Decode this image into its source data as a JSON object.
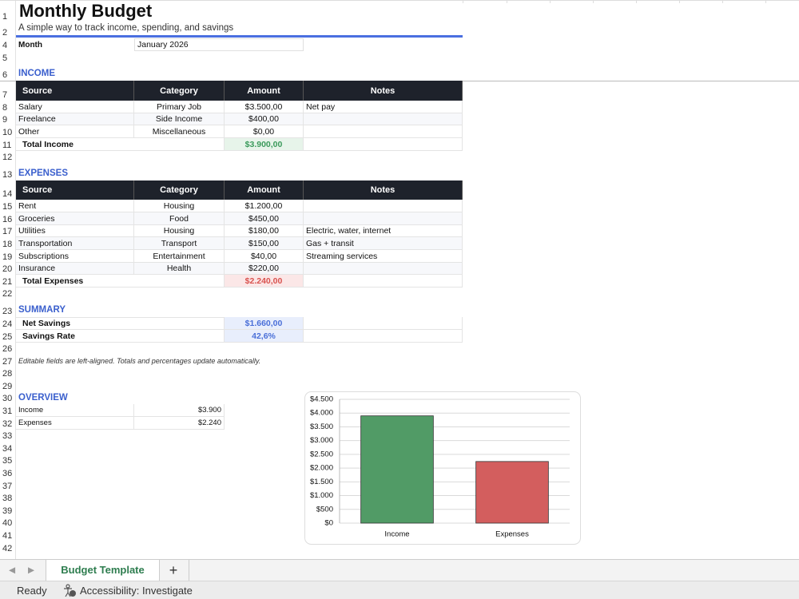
{
  "sheet": {
    "title": "Monthly Budget",
    "subtitle": "A simple way to track income, spending, and savings",
    "month_label": "Month",
    "month_value": "January 2026",
    "income": {
      "heading": "INCOME",
      "columns": [
        "Source",
        "Category",
        "Amount",
        "Notes"
      ],
      "rows": [
        [
          "Salary",
          "Primary Job",
          "$3.500,00",
          "Net pay"
        ],
        [
          "Freelance",
          "Side Income",
          "$400,00"
        ],
        [
          "Other",
          "Miscellaneous",
          "$0,00"
        ]
      ],
      "total": [
        "Total Income",
        "$3.900,00"
      ]
    },
    "expenses": {
      "heading": "EXPENSES",
      "columns": [
        "Source",
        "Category",
        "Amount",
        "Notes"
      ],
      "rows": [
        [
          "Rent",
          "Housing",
          "$1.200,00"
        ],
        [
          "Groceries",
          "Food",
          "$450,00"
        ],
        [
          "Utilities",
          "Housing",
          "$180,00",
          "Electric, water, internet"
        ],
        [
          "Transportation",
          "Transport",
          "$150,00",
          "Gas + transit"
        ],
        [
          "Subscriptions",
          "Entertainment",
          "$40,00",
          "Streaming services"
        ],
        [
          "Insurance",
          "Health",
          "$220,00"
        ]
      ],
      "total": [
        "Total Expenses",
        "$2.240,00"
      ]
    },
    "summary": {
      "heading": "SUMMARY",
      "rows": [
        [
          "Net Savings",
          "$1.660,00"
        ],
        [
          "Savings Rate",
          "42,6%"
        ]
      ]
    },
    "note": "Editable fields are left-aligned. Totals and percentages update automatically.",
    "overview": {
      "heading": "OVERVIEW",
      "rows": [
        [
          "Income",
          "$3.900"
        ],
        [
          "Expenses",
          "$2.240"
        ]
      ]
    }
  },
  "row_numbers": [
    1,
    2,
    4,
    5,
    6,
    7,
    8,
    9,
    10,
    11,
    12,
    13,
    14,
    15,
    16,
    17,
    18,
    19,
    20,
    21,
    22,
    23,
    24,
    25,
    26,
    27,
    28,
    29,
    30,
    31,
    32,
    33,
    34,
    35,
    36,
    37,
    38,
    39,
    40,
    41,
    42
  ],
  "tabs": {
    "active": "Budget Template",
    "add": "+"
  },
  "status": {
    "ready": "Ready",
    "accessibility": "Accessibility: Investigate"
  },
  "chart_data": {
    "type": "bar",
    "categories": [
      "Income",
      "Expenses"
    ],
    "values": [
      3900,
      2240
    ],
    "colors": [
      "#519b66",
      "#d35e5e"
    ],
    "ylim": [
      0,
      4500
    ],
    "yticks": [
      {
        "value": 0,
        "label": "$0"
      },
      {
        "value": 500,
        "label": "$500"
      },
      {
        "value": 1000,
        "label": "$1.000"
      },
      {
        "value": 1500,
        "label": "$1.500"
      },
      {
        "value": 2000,
        "label": "$2.000"
      },
      {
        "value": 2500,
        "label": "$2.500"
      },
      {
        "value": 3000,
        "label": "$3.000"
      },
      {
        "value": 3500,
        "label": "$3.500"
      },
      {
        "value": 4000,
        "label": "$4.000"
      },
      {
        "value": 4500,
        "label": "$4.500"
      }
    ],
    "grid": true
  }
}
